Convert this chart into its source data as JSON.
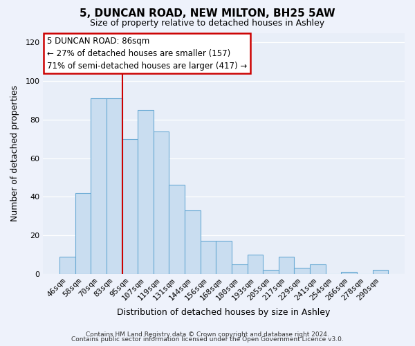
{
  "title": "5, DUNCAN ROAD, NEW MILTON, BH25 5AW",
  "subtitle": "Size of property relative to detached houses in Ashley",
  "xlabel": "Distribution of detached houses by size in Ashley",
  "ylabel": "Number of detached properties",
  "footer_line1": "Contains HM Land Registry data © Crown copyright and database right 2024.",
  "footer_line2": "Contains public sector information licensed under the Open Government Licence v3.0.",
  "bin_labels": [
    "46sqm",
    "58sqm",
    "70sqm",
    "83sqm",
    "95sqm",
    "107sqm",
    "119sqm",
    "131sqm",
    "144sqm",
    "156sqm",
    "168sqm",
    "180sqm",
    "193sqm",
    "205sqm",
    "217sqm",
    "229sqm",
    "241sqm",
    "254sqm",
    "266sqm",
    "278sqm",
    "290sqm"
  ],
  "bar_values": [
    9,
    42,
    91,
    91,
    70,
    85,
    74,
    46,
    33,
    17,
    17,
    5,
    10,
    2,
    9,
    3,
    5,
    0,
    1,
    0,
    2
  ],
  "bar_color": "#c9ddf0",
  "bar_edgecolor": "#6aaad4",
  "ylim": [
    0,
    125
  ],
  "yticks": [
    0,
    20,
    40,
    60,
    80,
    100,
    120
  ],
  "vline_x": 3.5,
  "vline_color": "#cc0000",
  "annotation_line1": "5 DUNCAN ROAD: 86sqm",
  "annotation_line2": "← 27% of detached houses are smaller (157)",
  "annotation_line3": "71% of semi-detached houses are larger (417) →",
  "background_color": "#eef2fb",
  "plot_background": "#e8eef8",
  "grid_color": "#ffffff",
  "title_fontsize": 11,
  "subtitle_fontsize": 9,
  "ylabel_fontsize": 9,
  "xlabel_fontsize": 9,
  "tick_labelsize": 8,
  "footer_fontsize": 6.5
}
